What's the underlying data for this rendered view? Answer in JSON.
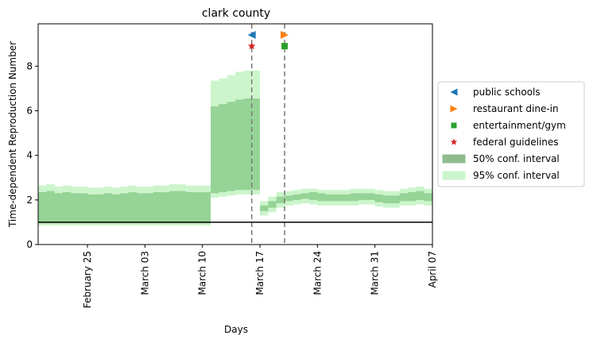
{
  "chart_data": {
    "type": "area",
    "title": "clark county",
    "xlabel": "Days",
    "ylabel": "Time-dependent Reproduction Number",
    "x_start": "2020-02-19",
    "x_end": "2020-04-07",
    "ylim": [
      0,
      9.9
    ],
    "yticks": [
      0,
      2,
      4,
      6,
      8
    ],
    "xticks": [
      {
        "date": "2020-02-25",
        "label": "February 25"
      },
      {
        "date": "2020-03-03",
        "label": "March 03"
      },
      {
        "date": "2020-03-10",
        "label": "March 10"
      },
      {
        "date": "2020-03-17",
        "label": "March 17"
      },
      {
        "date": "2020-03-24",
        "label": "March 24"
      },
      {
        "date": "2020-03-31",
        "label": "March 31"
      },
      {
        "date": "2020-04-07",
        "label": "April 07"
      }
    ],
    "reference_line_y": 1,
    "intervention_lines": [
      "2020-03-16",
      "2020-03-20"
    ],
    "steps": {
      "dates": [
        "2020-02-19",
        "2020-02-20",
        "2020-02-21",
        "2020-02-22",
        "2020-02-23",
        "2020-02-24",
        "2020-02-25",
        "2020-02-26",
        "2020-02-27",
        "2020-02-28",
        "2020-02-29",
        "2020-03-01",
        "2020-03-02",
        "2020-03-03",
        "2020-03-04",
        "2020-03-05",
        "2020-03-06",
        "2020-03-07",
        "2020-03-08",
        "2020-03-09",
        "2020-03-10",
        "2020-03-11",
        "2020-03-12",
        "2020-03-13",
        "2020-03-14",
        "2020-03-15",
        "2020-03-16",
        "2020-03-17",
        "2020-03-18",
        "2020-03-19",
        "2020-03-20",
        "2020-03-21",
        "2020-03-22",
        "2020-03-23",
        "2020-03-24",
        "2020-03-25",
        "2020-03-26",
        "2020-03-27",
        "2020-03-28",
        "2020-03-29",
        "2020-03-30",
        "2020-03-31",
        "2020-04-01",
        "2020-04-02",
        "2020-04-03",
        "2020-04-04",
        "2020-04-05",
        "2020-04-06"
      ],
      "ci50_low": [
        0.95,
        0.95,
        0.95,
        0.95,
        0.95,
        0.95,
        0.95,
        0.95,
        0.95,
        0.95,
        0.95,
        0.95,
        0.95,
        0.95,
        0.95,
        0.95,
        0.95,
        0.95,
        0.95,
        0.95,
        0.95,
        2.3,
        2.35,
        2.4,
        2.45,
        2.45,
        2.45,
        1.5,
        1.65,
        1.85,
        1.95,
        2.0,
        2.05,
        2.0,
        1.95,
        1.95,
        1.95,
        1.95,
        1.95,
        2.0,
        2.0,
        1.9,
        1.85,
        1.85,
        1.95,
        1.95,
        2.0,
        1.95
      ],
      "ci50_high": [
        2.35,
        2.4,
        2.3,
        2.35,
        2.3,
        2.3,
        2.25,
        2.25,
        2.3,
        2.25,
        2.3,
        2.35,
        2.3,
        2.3,
        2.35,
        2.35,
        2.4,
        2.4,
        2.35,
        2.35,
        2.35,
        6.2,
        6.3,
        6.4,
        6.5,
        6.55,
        6.55,
        1.75,
        1.95,
        2.15,
        2.2,
        2.25,
        2.3,
        2.35,
        2.3,
        2.25,
        2.25,
        2.25,
        2.3,
        2.3,
        2.3,
        2.25,
        2.2,
        2.2,
        2.3,
        2.35,
        2.4,
        2.3
      ],
      "ci95_low": [
        0.85,
        0.85,
        0.85,
        0.85,
        0.85,
        0.85,
        0.85,
        0.85,
        0.85,
        0.85,
        0.85,
        0.85,
        0.85,
        0.85,
        0.85,
        0.85,
        0.85,
        0.85,
        0.85,
        0.85,
        0.85,
        2.1,
        2.15,
        2.2,
        2.25,
        2.25,
        2.25,
        1.3,
        1.45,
        1.65,
        1.75,
        1.8,
        1.85,
        1.8,
        1.75,
        1.75,
        1.75,
        1.75,
        1.75,
        1.8,
        1.8,
        1.7,
        1.65,
        1.65,
        1.75,
        1.75,
        1.8,
        1.75
      ],
      "ci95_high": [
        2.65,
        2.7,
        2.6,
        2.65,
        2.6,
        2.6,
        2.55,
        2.55,
        2.6,
        2.55,
        2.6,
        2.65,
        2.6,
        2.6,
        2.65,
        2.65,
        2.7,
        2.7,
        2.65,
        2.65,
        2.65,
        7.35,
        7.45,
        7.6,
        7.75,
        7.8,
        7.8,
        1.95,
        2.15,
        2.35,
        2.4,
        2.45,
        2.5,
        2.5,
        2.45,
        2.45,
        2.45,
        2.45,
        2.5,
        2.5,
        2.5,
        2.45,
        2.4,
        2.4,
        2.5,
        2.55,
        2.6,
        2.5
      ]
    },
    "markers": [
      {
        "name": "public schools",
        "date": "2020-03-16",
        "y": 9.4,
        "shape": "triangle-left",
        "color": "#1f77b4"
      },
      {
        "name": "restaurant dine-in",
        "date": "2020-03-20",
        "y": 9.4,
        "shape": "triangle-right",
        "color": "#ff7f0e"
      },
      {
        "name": "entertainment/gym",
        "date": "2020-03-20",
        "y": 8.9,
        "shape": "square",
        "color": "#2ca02c"
      },
      {
        "name": "federal guidelines",
        "date": "2020-03-16",
        "y": 8.9,
        "shape": "star",
        "color": "#d62728"
      }
    ],
    "legend": {
      "placement": "right",
      "entries": [
        {
          "label": "public schools",
          "shape": "triangle-left",
          "color": "#1f77b4"
        },
        {
          "label": "restaurant dine-in",
          "shape": "triangle-right",
          "color": "#ff7f0e"
        },
        {
          "label": "entertainment/gym",
          "shape": "square",
          "color": "#2ca02c"
        },
        {
          "label": "federal guidelines",
          "shape": "star",
          "color": "#d62728"
        },
        {
          "label": "50% conf. interval",
          "shape": "patch",
          "color": "#8fbc8f"
        },
        {
          "label": "95% conf. interval",
          "shape": "patch",
          "color": "#ccf5cc"
        }
      ]
    },
    "colors": {
      "ci50": "#96d396",
      "ci95": "#ccf5cc",
      "vline": "#777777",
      "reference": "#000000"
    }
  }
}
